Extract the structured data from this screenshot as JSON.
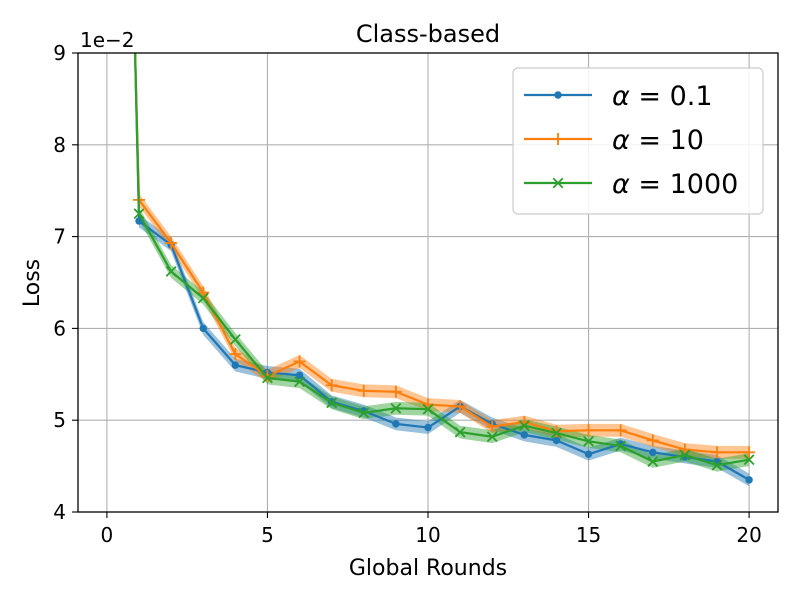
{
  "chart_data": {
    "type": "line",
    "title": "Class-based",
    "xlabel": "Global Rounds",
    "ylabel": "Loss",
    "y_scale_label": "1e−2",
    "xlim": [
      -0.9,
      20.9
    ],
    "ylim": [
      4,
      9
    ],
    "x_ticks": [
      0,
      5,
      10,
      15,
      20
    ],
    "y_ticks": [
      4,
      5,
      6,
      7,
      8,
      9
    ],
    "grid": true,
    "legend_position": "top-right",
    "x": [
      1,
      2,
      3,
      4,
      5,
      6,
      7,
      8,
      9,
      10,
      11,
      12,
      13,
      14,
      15,
      16,
      17,
      18,
      19,
      20
    ],
    "series": [
      {
        "name": "α = 0.1",
        "label_parts": [
          "α",
          " = 0.1"
        ],
        "color": "#1f77b4",
        "marker": "circle",
        "x0": 0.85,
        "y0": 9.4,
        "values": [
          7.17,
          6.91,
          6.0,
          5.6,
          5.52,
          5.49,
          5.2,
          5.1,
          4.96,
          4.92,
          5.15,
          4.96,
          4.84,
          4.78,
          4.63,
          4.74,
          4.65,
          4.6,
          4.55,
          4.35
        ],
        "band": 0.07
      },
      {
        "name": "α = 10",
        "label_parts": [
          "α",
          " = 10"
        ],
        "color": "#ff7f0e",
        "marker": "plus",
        "x0": 0.85,
        "y0": 9.4,
        "values": [
          7.4,
          6.93,
          6.39,
          5.72,
          5.48,
          5.64,
          5.38,
          5.32,
          5.31,
          5.17,
          5.15,
          4.93,
          4.98,
          4.88,
          4.89,
          4.89,
          4.78,
          4.68,
          4.65,
          4.65
        ],
        "band": 0.07
      },
      {
        "name": "α = 1000",
        "label_parts": [
          "α",
          " = 1000"
        ],
        "color": "#2ca02c",
        "marker": "x",
        "x0": 0.85,
        "y0": 9.4,
        "values": [
          7.25,
          6.62,
          6.33,
          5.88,
          5.46,
          5.42,
          5.19,
          5.08,
          5.13,
          5.12,
          4.87,
          4.82,
          4.94,
          4.86,
          4.77,
          4.72,
          4.55,
          4.62,
          4.51,
          4.57
        ],
        "band": 0.07
      }
    ]
  }
}
